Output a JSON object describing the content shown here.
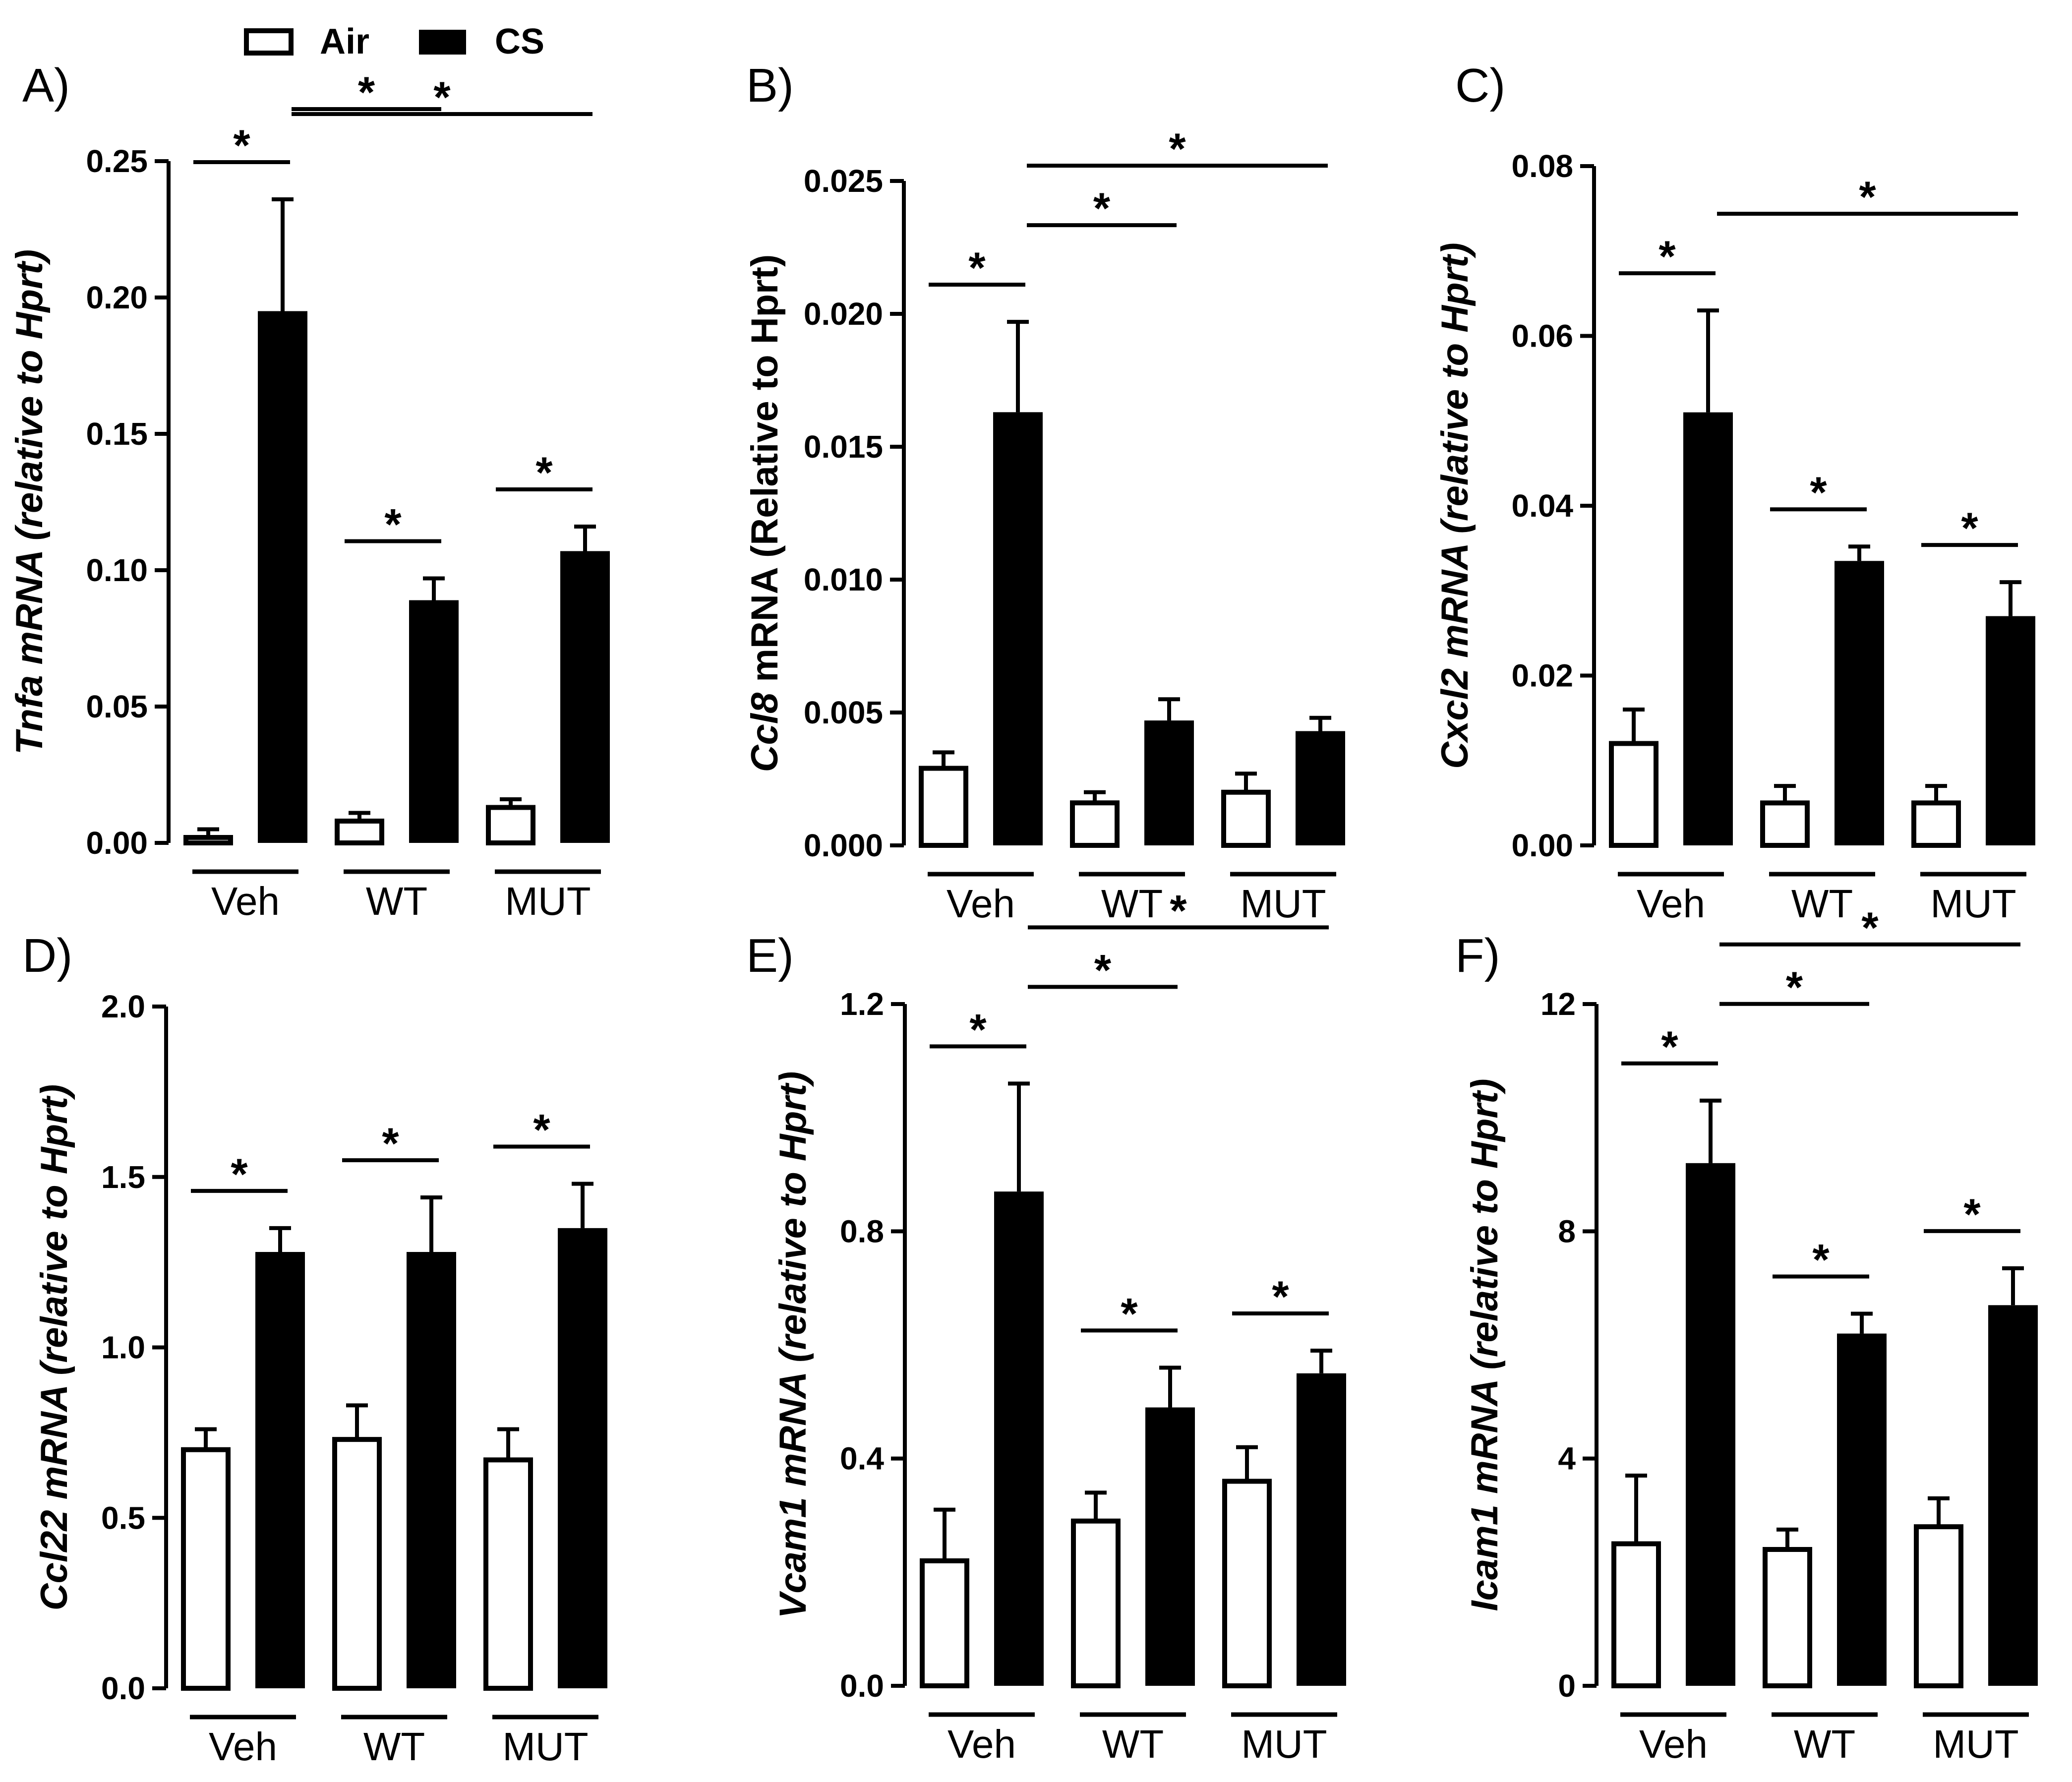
{
  "legend": {
    "items": [
      {
        "label": "Air",
        "color": "#ffffff"
      },
      {
        "label": "CS",
        "color": "#000000"
      }
    ]
  },
  "chart_data": [
    {
      "panel": "A)",
      "type": "bar",
      "ylabel_gene": "Tnfa",
      "ylabel_rest": " mRNA  (relative to Hprt)",
      "ylabel_rest_italic": true,
      "ylim": [
        0,
        0.25
      ],
      "yticks": [
        0,
        0.05,
        0.1,
        0.15,
        0.2,
        0.25
      ],
      "ytick_labels": [
        "0.00",
        "0.05",
        "0.10",
        "0.15",
        "0.20",
        "0.25"
      ],
      "categories": [
        "Veh",
        "WT",
        "MUT"
      ],
      "series": [
        {
          "name": "Air",
          "values": [
            0.002,
            0.008,
            0.013
          ],
          "errors": [
            0.003,
            0.003,
            0.003
          ]
        },
        {
          "name": "CS",
          "values": [
            0.195,
            0.089,
            0.107
          ],
          "errors": [
            0.041,
            0.008,
            0.009
          ]
        }
      ],
      "significance": [
        {
          "from": [
            0,
            0
          ],
          "to": [
            0,
            1
          ],
          "label": "*"
        },
        {
          "from": [
            0,
            1
          ],
          "to": [
            1,
            1
          ],
          "label": "*"
        },
        {
          "from": [
            0,
            1
          ],
          "to": [
            2,
            1
          ],
          "label": "*"
        },
        {
          "from": [
            1,
            0
          ],
          "to": [
            1,
            1
          ],
          "label": "*"
        },
        {
          "from": [
            2,
            0
          ],
          "to": [
            2,
            1
          ],
          "label": "*"
        }
      ]
    },
    {
      "panel": "B)",
      "type": "bar",
      "ylabel_gene": "Ccl8",
      "ylabel_rest": " mRNA (Relative to Hprt)",
      "ylabel_rest_italic": false,
      "ylim": [
        0,
        0.025
      ],
      "yticks": [
        0,
        0.005,
        0.01,
        0.015,
        0.02,
        0.025
      ],
      "ytick_labels": [
        "0.000",
        "0.005",
        "0.010",
        "0.015",
        "0.020",
        "0.025"
      ],
      "categories": [
        "Veh",
        "WT",
        "MUT"
      ],
      "series": [
        {
          "name": "Air",
          "values": [
            0.0029,
            0.0016,
            0.002
          ],
          "errors": [
            0.0006,
            0.0004,
            0.0007
          ]
        },
        {
          "name": "CS",
          "values": [
            0.0163,
            0.0047,
            0.0043
          ],
          "errors": [
            0.0034,
            0.0008,
            0.0005
          ]
        }
      ],
      "significance": [
        {
          "from": [
            0,
            0
          ],
          "to": [
            0,
            1
          ],
          "label": "*"
        },
        {
          "from": [
            0,
            1
          ],
          "to": [
            1,
            1
          ],
          "label": "*"
        },
        {
          "from": [
            0,
            1
          ],
          "to": [
            2,
            1
          ],
          "label": "*"
        }
      ]
    },
    {
      "panel": "C)",
      "type": "bar",
      "ylabel_gene": "Cxcl2",
      "ylabel_rest": " mRNA  (relative to Hprt)",
      "ylabel_rest_italic": true,
      "ylim": [
        0,
        0.08
      ],
      "yticks": [
        0,
        0.02,
        0.04,
        0.06,
        0.08
      ],
      "ytick_labels": [
        "0.00",
        "0.02",
        "0.04",
        "0.06",
        "0.08"
      ],
      "categories": [
        "Veh",
        "WT",
        "MUT"
      ],
      "series": [
        {
          "name": "Air",
          "values": [
            0.012,
            0.005,
            0.005
          ],
          "errors": [
            0.004,
            0.002,
            0.002
          ]
        },
        {
          "name": "CS",
          "values": [
            0.051,
            0.0335,
            0.027
          ],
          "errors": [
            0.012,
            0.0017,
            0.004
          ]
        }
      ],
      "significance": [
        {
          "from": [
            0,
            0
          ],
          "to": [
            0,
            1
          ],
          "label": "*"
        },
        {
          "from": [
            0,
            1
          ],
          "to": [
            2,
            1
          ],
          "label": "*"
        },
        {
          "from": [
            1,
            0
          ],
          "to": [
            1,
            1
          ],
          "label": "*"
        },
        {
          "from": [
            2,
            0
          ],
          "to": [
            2,
            1
          ],
          "label": "*"
        }
      ]
    },
    {
      "panel": "D)",
      "type": "bar",
      "ylabel_gene": "Ccl22",
      "ylabel_rest": " mRNA  (relative to Hprt)",
      "ylabel_rest_italic": true,
      "ylim": [
        0,
        2.0
      ],
      "yticks": [
        0,
        0.5,
        1.0,
        1.5,
        2.0
      ],
      "ytick_labels": [
        "0.0",
        "0.5",
        "1.0",
        "1.5",
        "2.0"
      ],
      "categories": [
        "Veh",
        "WT",
        "MUT"
      ],
      "series": [
        {
          "name": "Air",
          "values": [
            0.7,
            0.73,
            0.67
          ],
          "errors": [
            0.06,
            0.1,
            0.09
          ]
        },
        {
          "name": "CS",
          "values": [
            1.28,
            1.28,
            1.35
          ],
          "errors": [
            0.07,
            0.16,
            0.13
          ]
        }
      ],
      "significance": [
        {
          "from": [
            0,
            0
          ],
          "to": [
            0,
            1
          ],
          "label": "*"
        },
        {
          "from": [
            1,
            0
          ],
          "to": [
            1,
            1
          ],
          "label": "*"
        },
        {
          "from": [
            2,
            0
          ],
          "to": [
            2,
            1
          ],
          "label": "*"
        }
      ]
    },
    {
      "panel": "E)",
      "type": "bar",
      "ylabel_gene": "Vcam1",
      "ylabel_rest": " mRNA  (relative to Hprt)",
      "ylabel_rest_italic": true,
      "ylim": [
        0,
        1.2
      ],
      "yticks": [
        0,
        0.4,
        0.8,
        1.2
      ],
      "ytick_labels": [
        "0.0",
        "0.4",
        "0.8",
        "1.2"
      ],
      "categories": [
        "Veh",
        "WT",
        "MUT"
      ],
      "series": [
        {
          "name": "Air",
          "values": [
            0.22,
            0.29,
            0.36
          ],
          "errors": [
            0.09,
            0.05,
            0.06
          ]
        },
        {
          "name": "CS",
          "values": [
            0.87,
            0.49,
            0.55
          ],
          "errors": [
            0.19,
            0.07,
            0.04
          ]
        }
      ],
      "significance": [
        {
          "from": [
            0,
            0
          ],
          "to": [
            0,
            1
          ],
          "label": "*"
        },
        {
          "from": [
            0,
            1
          ],
          "to": [
            1,
            1
          ],
          "label": "*"
        },
        {
          "from": [
            0,
            1
          ],
          "to": [
            2,
            1
          ],
          "label": "*"
        },
        {
          "from": [
            1,
            0
          ],
          "to": [
            1,
            1
          ],
          "label": "*"
        },
        {
          "from": [
            2,
            0
          ],
          "to": [
            2,
            1
          ],
          "label": "*"
        }
      ]
    },
    {
      "panel": "F)",
      "type": "bar",
      "ylabel_gene": "Icam1",
      "ylabel_rest": " mRNA  (relative to Hprt)",
      "ylabel_rest_italic": true,
      "ylim": [
        0,
        12
      ],
      "yticks": [
        0,
        4,
        8,
        12
      ],
      "ytick_labels": [
        "0",
        "4",
        "8",
        "12"
      ],
      "categories": [
        "Veh",
        "WT",
        "MUT"
      ],
      "series": [
        {
          "name": "Air",
          "values": [
            2.5,
            2.4,
            2.8
          ],
          "errors": [
            1.2,
            0.35,
            0.5
          ]
        },
        {
          "name": "CS",
          "values": [
            9.2,
            6.2,
            6.7
          ],
          "errors": [
            1.1,
            0.35,
            0.65
          ]
        }
      ],
      "significance": [
        {
          "from": [
            0,
            0
          ],
          "to": [
            0,
            1
          ],
          "label": "*"
        },
        {
          "from": [
            0,
            1
          ],
          "to": [
            1,
            1
          ],
          "label": "*"
        },
        {
          "from": [
            0,
            1
          ],
          "to": [
            2,
            1
          ],
          "label": "*"
        },
        {
          "from": [
            1,
            0
          ],
          "to": [
            1,
            1
          ],
          "label": "*"
        },
        {
          "from": [
            2,
            0
          ],
          "to": [
            2,
            1
          ],
          "label": "*"
        }
      ]
    }
  ]
}
